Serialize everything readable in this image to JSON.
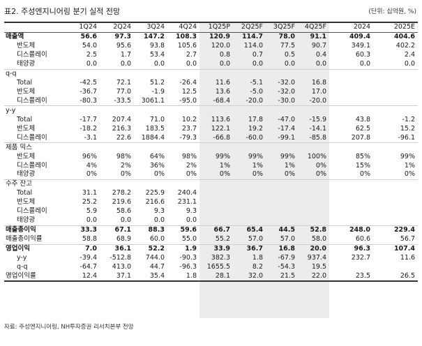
{
  "title": "표2. 주성엔지니어링 분기 실적 전망",
  "unit": "(단위: 십억원, %)",
  "columns": [
    "1Q24",
    "2Q24",
    "3Q24",
    "4Q24",
    "1Q25P",
    "2Q25F",
    "3Q25F",
    "4Q25F",
    "2024",
    "2025E"
  ],
  "rows": [
    {
      "label": "매출액",
      "type": "bold",
      "values": [
        "56.6",
        "97.3",
        "147.2",
        "108.3",
        "120.9",
        "114.7",
        "78.0",
        "91.1",
        "409.4",
        "404.6"
      ]
    },
    {
      "label": "반도체",
      "type": "sub",
      "values": [
        "54.0",
        "95.6",
        "93.8",
        "105.6",
        "120.0",
        "114.0",
        "77.5",
        "90.7",
        "349.1",
        "402.2"
      ]
    },
    {
      "label": "디스플레이",
      "type": "sub",
      "values": [
        "2.5",
        "1.7",
        "53.4",
        "2.7",
        "0.8",
        "0.7",
        "0.5",
        "0.4",
        "60.3",
        "2.4"
      ]
    },
    {
      "label": "태양광",
      "type": "sub",
      "values": [
        "0.0",
        "0.0",
        "0.0",
        "0.0",
        "0.0",
        "0.0",
        "0.0",
        "0.0",
        "0.0",
        "0.0"
      ]
    },
    {
      "label": "q-q",
      "type": "sect",
      "values": [
        "",
        "",
        "",
        "",
        "",
        "",
        "",
        "",
        "",
        ""
      ]
    },
    {
      "label": "Total",
      "type": "sub",
      "values": [
        "-42.5",
        "72.1",
        "51.2",
        "-26.4",
        "11.6",
        "-5.1",
        "-32.0",
        "16.8",
        "",
        ""
      ]
    },
    {
      "label": "반도체",
      "type": "sub",
      "values": [
        "-36.7",
        "77.0",
        "-1.9",
        "12.5",
        "13.6",
        "-5.0",
        "-32.0",
        "17.0",
        "",
        ""
      ]
    },
    {
      "label": "디스플레이",
      "type": "sub",
      "values": [
        "-80.3",
        "-33.5",
        "3061.1",
        "-95.0",
        "-68.4",
        "-20.0",
        "-30.0",
        "-20.0",
        "",
        ""
      ]
    },
    {
      "label": "y-y",
      "type": "sect",
      "values": [
        "",
        "",
        "",
        "",
        "",
        "",
        "",
        "",
        "",
        ""
      ]
    },
    {
      "label": "Total",
      "type": "sub",
      "values": [
        "-17.7",
        "207.4",
        "71.0",
        "10.2",
        "113.6",
        "17.8",
        "-47.0",
        "-15.9",
        "43.8",
        "-1.2"
      ]
    },
    {
      "label": "반도체",
      "type": "sub",
      "values": [
        "-18.2",
        "216.3",
        "183.5",
        "23.7",
        "122.1",
        "19.2",
        "-17.4",
        "-14.1",
        "62.5",
        "15.2"
      ]
    },
    {
      "label": "디스플레이",
      "type": "sub",
      "values": [
        "-3.1",
        "22.6",
        "1884.4",
        "-79.3",
        "-66.8",
        "-60.0",
        "-99.1",
        "-85.8",
        "207.8",
        "-96.1"
      ]
    },
    {
      "label": "제품 믹스",
      "type": "sect",
      "values": [
        "",
        "",
        "",
        "",
        "",
        "",
        "",
        "",
        "",
        ""
      ]
    },
    {
      "label": "반도체",
      "type": "sub",
      "values": [
        "96%",
        "98%",
        "64%",
        "98%",
        "99%",
        "99%",
        "99%",
        "100%",
        "85%",
        "99%"
      ]
    },
    {
      "label": "디스플레이",
      "type": "sub",
      "values": [
        "4%",
        "2%",
        "36%",
        "2%",
        "1%",
        "1%",
        "1%",
        "0%",
        "15%",
        "1%"
      ]
    },
    {
      "label": "태양광",
      "type": "sub",
      "values": [
        "0%",
        "0%",
        "0%",
        "0%",
        "0%",
        "0%",
        "0%",
        "0%",
        "0%",
        "0%"
      ]
    },
    {
      "label": "수주 잔고",
      "type": "sect",
      "values": [
        "",
        "",
        "",
        "",
        "",
        "",
        "",
        "",
        "",
        ""
      ]
    },
    {
      "label": "Total",
      "type": "sub",
      "values": [
        "31.1",
        "278.2",
        "225.9",
        "240.4",
        "",
        "",
        "",
        "",
        "",
        ""
      ]
    },
    {
      "label": "반도체",
      "type": "sub",
      "values": [
        "25.2",
        "219.6",
        "216.6",
        "231.1",
        "",
        "",
        "",
        "",
        "",
        ""
      ]
    },
    {
      "label": "디스플레이",
      "type": "sub",
      "values": [
        "5.9",
        "58.6",
        "9.3",
        "9.3",
        "",
        "",
        "",
        "",
        "",
        ""
      ]
    },
    {
      "label": "태양광",
      "type": "sub",
      "values": [
        "0.0",
        "0.0",
        "0.0",
        "0.0",
        "",
        "",
        "",
        "",
        "",
        ""
      ]
    },
    {
      "label": "매출총이익",
      "type": "bold",
      "values": [
        "33.3",
        "67.1",
        "88.3",
        "59.6",
        "66.7",
        "65.4",
        "44.5",
        "52.8",
        "248.0",
        "229.4"
      ]
    },
    {
      "label": "매출총이익률",
      "type": "plain",
      "values": [
        "58.8",
        "68.9",
        "60.0",
        "55.0",
        "55.2",
        "57.0",
        "57.0",
        "58.0",
        "60.6",
        "56.7"
      ]
    },
    {
      "label": "영업이익",
      "type": "bold",
      "values": [
        "7.0",
        "36.1",
        "52.2",
        "1.9",
        "33.9",
        "36.7",
        "16.8",
        "20.0",
        "96.3",
        "107.4"
      ]
    },
    {
      "label": "y-y",
      "type": "sub",
      "values": [
        "-39.4",
        "-512.8",
        "744.0",
        "-90.3",
        "382.3",
        "1.8",
        "-67.9",
        "937.4",
        "232.7",
        "11.6"
      ]
    },
    {
      "label": "q-q",
      "type": "sub",
      "values": [
        "-64.7",
        "413.0",
        "44.7",
        "-96.3",
        "1655.5",
        "8.2",
        "-54.3",
        "19.5",
        "",
        ""
      ]
    },
    {
      "label": "영업이익률",
      "type": "plain",
      "values": [
        "12.4",
        "37.1",
        "35.4",
        "1.8",
        "28.1",
        "32.0",
        "21.5",
        "22.0",
        "23.5",
        "26.5"
      ]
    }
  ],
  "source": "자료: 주성엔지니어링, NH투자증권 리서치본부 전망"
}
